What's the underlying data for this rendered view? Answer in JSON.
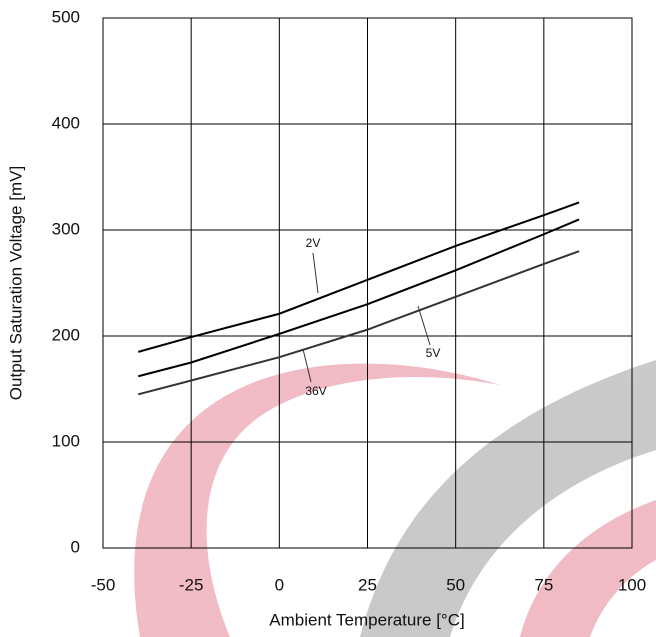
{
  "chart_data": {
    "type": "line",
    "x_label": "Ambient Temperature [°C]",
    "y_label": "Output Saturation Voltage [mV]",
    "x": [
      -40,
      -25,
      0,
      25,
      50,
      75,
      85
    ],
    "series": [
      {
        "name": "2V",
        "color": "#000000",
        "values": [
          185,
          199,
          221,
          253,
          285,
          314,
          326
        ]
      },
      {
        "name": "5V",
        "color": "#000000",
        "values": [
          162,
          175,
          202,
          230,
          262,
          296,
          310
        ]
      },
      {
        "name": "36V",
        "color": "#333333",
        "values": [
          145,
          158,
          180,
          206,
          237,
          268,
          280
        ]
      }
    ],
    "xlim": [
      -50,
      100
    ],
    "xticks": [
      -50,
      -25,
      0,
      25,
      50,
      75,
      100
    ],
    "ylim": [
      0,
      500
    ],
    "yticks": [
      0,
      100,
      200,
      300,
      400,
      500
    ],
    "grid": true
  }
}
